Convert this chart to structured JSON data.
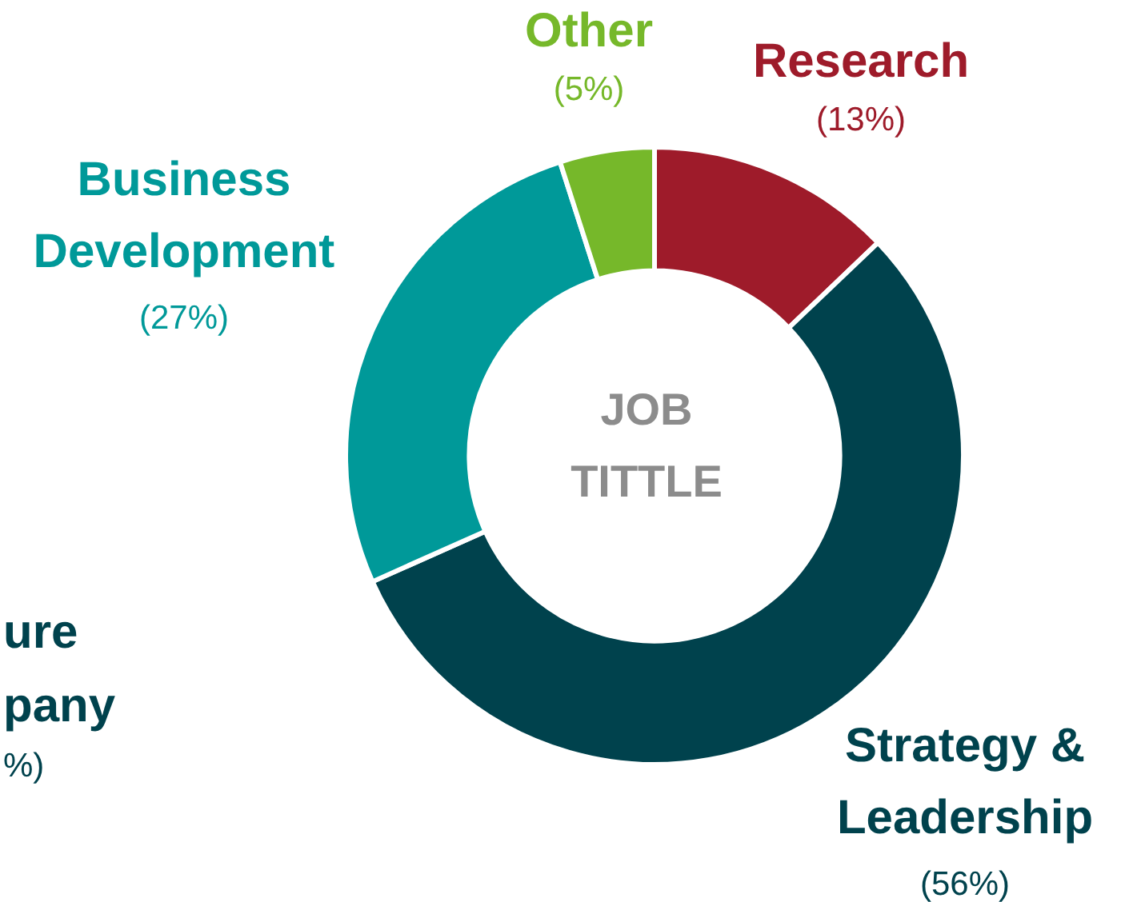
{
  "chart_data": {
    "type": "donut",
    "title": "JOB TITTLE",
    "categories": [
      "Research",
      "Strategy & Leadership",
      "Business Development",
      "Other"
    ],
    "values": [
      13,
      56,
      27,
      5
    ],
    "colors": [
      "#9e1b2a",
      "#00424d",
      "#009999",
      "#76b82a"
    ],
    "value_labels": [
      "(13%)",
      "(56%)",
      "(27%)",
      "(5%)"
    ],
    "annotations": [
      "ure",
      "pany",
      "%)"
    ]
  }
}
